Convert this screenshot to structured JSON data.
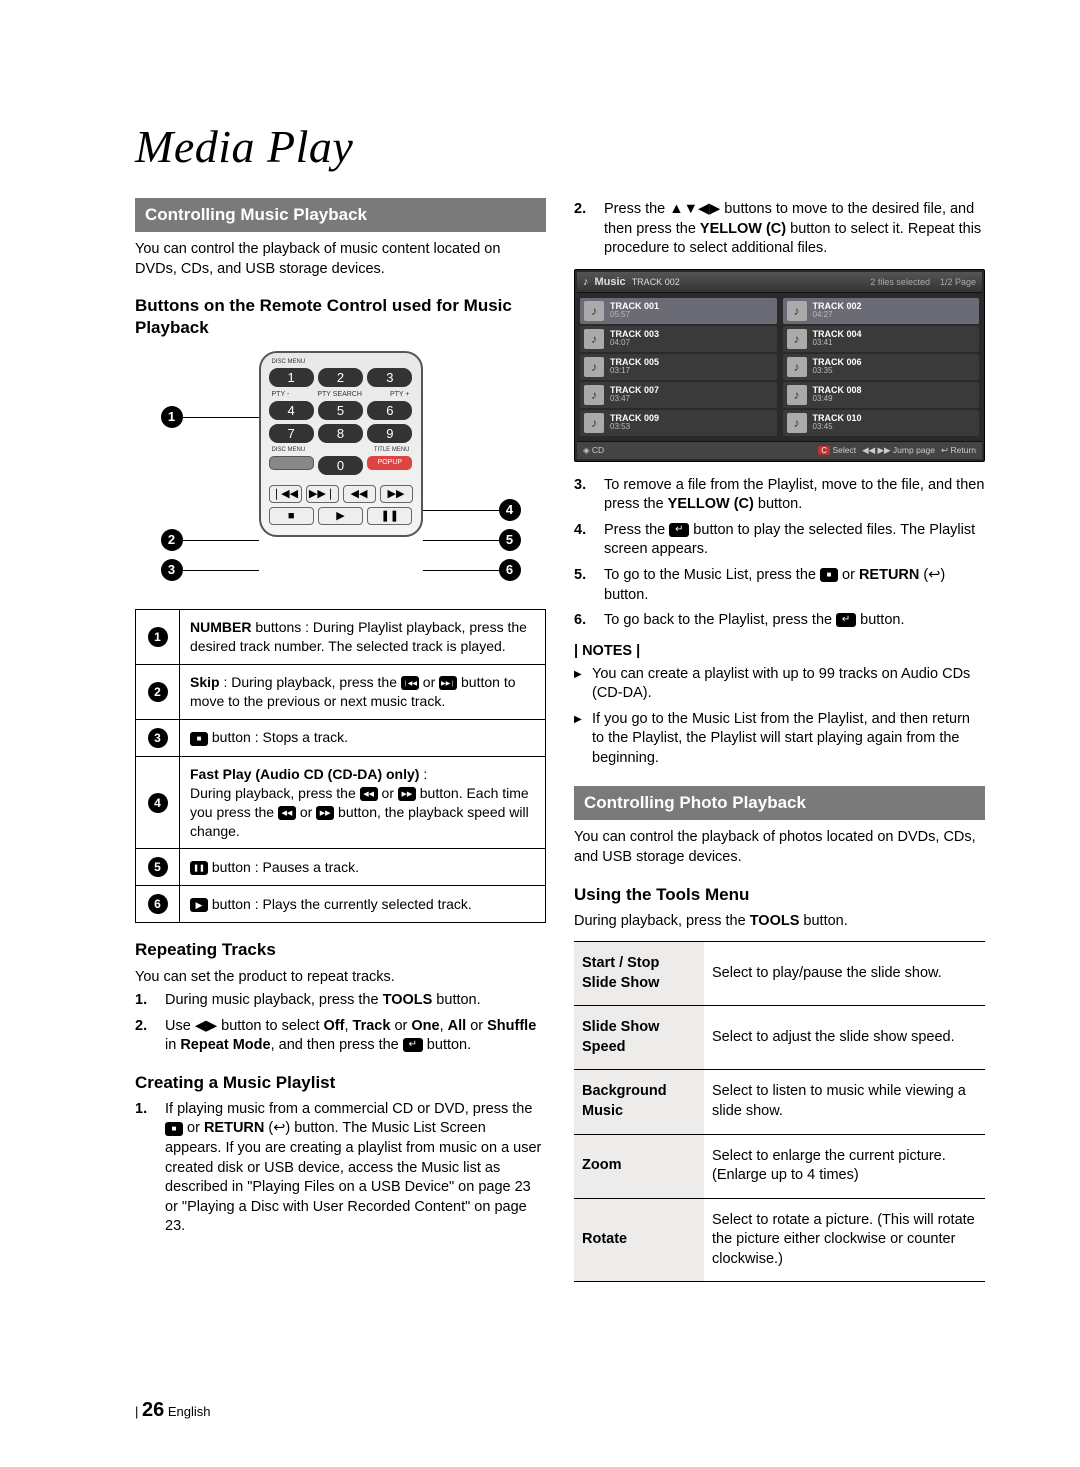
{
  "chapter": "Media Play",
  "left": {
    "bar1": "Controlling Music Playback",
    "intro1": "You can control the playback of music content located on DVDs, CDs, and USB storage devices.",
    "sub1": "Buttons on the Remote Control used for Music Playback",
    "remote": {
      "pty": {
        "l": "PTY -",
        "c": "PTY SEARCH",
        "r": "PTY +"
      },
      "disc": "DISC MENU",
      "title": "TITLE MENU",
      "popup": "POPUP",
      "keys": [
        "1",
        "2",
        "3",
        "4",
        "5",
        "6",
        "7",
        "8",
        "9",
        "0"
      ],
      "transport1": [
        "❘◀◀",
        "▶▶❘",
        "◀◀",
        "▶▶"
      ],
      "transport2": [
        "■",
        "▶",
        "❚❚"
      ],
      "callouts": [
        "1",
        "2",
        "3",
        "4",
        "5",
        "6"
      ]
    },
    "desc": [
      {
        "n": "1",
        "html": "<strong>NUMBER</strong> buttons : During Playlist playback, press the desired track number. The selected track is played."
      },
      {
        "n": "2",
        "html": "<strong>Skip</strong> : During playback, press the <span class='iconbox psk'></span> or <span class='iconbox nsk'></span> button to move to the previous or next music track."
      },
      {
        "n": "3",
        "html": "<span class='iconbox stop'></span> button : Stops a track."
      },
      {
        "n": "4",
        "html": "<strong>Fast Play (Audio CD (CD-DA) only)</strong> :<br>During playback, press the <span class='iconbox rw'></span> or <span class='iconbox ff'></span> button. Each time you press the <span class='iconbox rw'></span> or <span class='iconbox ff'></span> button, the playback speed will change."
      },
      {
        "n": "5",
        "html": "<span class='iconbox pause'></span> button : Pauses a track."
      },
      {
        "n": "6",
        "html": "<span class='iconbox play'></span> button : Plays the currently selected track."
      }
    ],
    "sub2": "Repeating Tracks",
    "rep_intro": "You can set the product to repeat tracks.",
    "rep_steps": [
      "During music playback, press the <strong>TOOLS</strong> button.",
      "Use ◀▶ button to select <strong>Off</strong>, <strong>Track</strong> or <strong>One</strong>, <strong>All</strong> or <strong>Shuffle</strong> in <strong>Repeat Mode</strong>, and then press the <span class='iconbox enter'></span> button."
    ],
    "sub3": "Creating a Music Playlist",
    "cre_steps": [
      "If playing music from a commercial CD or DVD, press the <span class='iconbox stop'></span> or <strong>RETURN</strong> (<span class='ret'></span>) button. The Music List Screen appears. If you are creating a playlist from music on a user created disk or USB device, access the Music list as described in \"Playing Files on a USB Device\" on page 23 or \"Playing a Disc with User Recorded Content\" on page 23."
    ]
  },
  "right": {
    "step2": "Press the ▲▼◀▶ buttons to move to the desired file, and then press the <strong>YELLOW (C)</strong> button to select it. Repeat this procedure to select additional files.",
    "music": {
      "title": "Music",
      "current": "TRACK 002",
      "hdr_sel": "2 files selected",
      "hdr_pg": "1/2 Page",
      "tracks": [
        {
          "t": "TRACK 001",
          "d": "05:57",
          "sel": true
        },
        {
          "t": "TRACK 002",
          "d": "04:27",
          "sel": true
        },
        {
          "t": "TRACK 003",
          "d": "04:07"
        },
        {
          "t": "TRACK 004",
          "d": "03:41"
        },
        {
          "t": "TRACK 005",
          "d": "03:17"
        },
        {
          "t": "TRACK 006",
          "d": "03:35"
        },
        {
          "t": "TRACK 007",
          "d": "03:47"
        },
        {
          "t": "TRACK 008",
          "d": "03:49"
        },
        {
          "t": "TRACK 009",
          "d": "03:53"
        },
        {
          "t": "TRACK 010",
          "d": "03:45"
        }
      ],
      "bot_l": "CD",
      "bot_badge": "C",
      "bot_sel": "Select",
      "bot_jump": "◀◀ ▶▶ Jump page",
      "bot_ret": "↩ Return"
    },
    "steps_after": [
      "To remove a file from the Playlist, move to the file, and then press the <strong>YELLOW (C)</strong> button.",
      "Press the <span class='iconbox enter'></span> button to play the selected files. The Playlist screen appears.",
      "To go to the Music List, press the <span class='iconbox stop'></span> or <strong>RETURN</strong> (<span class='ret'></span>) button.",
      "To go back to the Playlist, press the <span class='iconbox enter'></span> button."
    ],
    "notes_label": "| NOTES |",
    "notes": [
      "You can create a playlist with up to 99 tracks on Audio CDs (CD-DA).",
      "If you go to the Music List from the Playlist, and then return to the Playlist, the Playlist will start playing again from the beginning."
    ],
    "bar2": "Controlling Photo Playback",
    "intro2": "You can control the playback of photos located on DVDs, CDs, and USB storage devices.",
    "sub4": "Using the Tools Menu",
    "tools_intro": "During playback, press the <strong>TOOLS</strong> button.",
    "tools": [
      {
        "k": "Start / Stop Slide Show",
        "v": "Select to play/pause the slide show."
      },
      {
        "k": "Slide Show Speed",
        "v": "Select to adjust the slide show speed."
      },
      {
        "k": "Background Music",
        "v": "Select to listen to music while viewing a slide show."
      },
      {
        "k": "Zoom",
        "v": "Select to enlarge the current picture. (Enlarge up to 4 times)"
      },
      {
        "k": "Rotate",
        "v": "Select to rotate a picture. (This will rotate the picture either clockwise or counter clockwise.)"
      }
    ]
  },
  "footer": {
    "page": "26",
    "lang": "English"
  }
}
